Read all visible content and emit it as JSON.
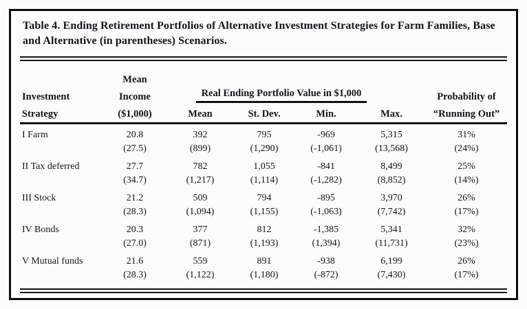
{
  "page": {
    "title": "Table 4. Ending Retirement Portfolios of Alternative Investment Strategies for Farm Families, Base and Alternative (in parentheses) Scenarios."
  },
  "table": {
    "headers": {
      "col_strategy": [
        "Investment",
        "Strategy"
      ],
      "col_income": [
        "Mean",
        "Income",
        "($1,000)"
      ],
      "group": "Real Ending Portfolio Value in $1,000",
      "sub": [
        "Mean",
        "St. Dev.",
        "Min.",
        "Max."
      ],
      "col_probability": [
        "Probability of",
        "“Running Out”"
      ]
    },
    "rows": [
      {
        "strategy": "I Farm",
        "base": [
          "20.8",
          "392",
          "795",
          "-969",
          "5,315",
          "31%"
        ],
        "alt": [
          "(27.5)",
          "(899)",
          "(1,290)",
          "(-1,061)",
          "(13,568)",
          "(24%)"
        ]
      },
      {
        "strategy": "II Tax deferred",
        "base": [
          "27.7",
          "782",
          "1,055",
          "-841",
          "8,499",
          "25%"
        ],
        "alt": [
          "(34.7)",
          "(1,217)",
          "(1,114)",
          "(-1,282)",
          "(8,852)",
          "(14%)"
        ]
      },
      {
        "strategy": "III Stock",
        "base": [
          "21.2",
          "509",
          "794",
          "-895",
          "3,970",
          "26%"
        ],
        "alt": [
          "(28.3)",
          "(1,094)",
          "(1,155)",
          "(-1,063)",
          "(7,742)",
          "(17%)"
        ]
      },
      {
        "strategy": "IV Bonds",
        "base": [
          "20.3",
          "377",
          "812",
          "-1,385",
          "5,341",
          "32%"
        ],
        "alt": [
          "(27.0)",
          "(871)",
          "(1,193)",
          "(1,394)",
          "(11,731)",
          "(23%)"
        ]
      },
      {
        "strategy": "V Mutual funds",
        "base": [
          "21.6",
          "559",
          "891",
          "-938",
          "6,199",
          "26%"
        ],
        "alt": [
          "(28.3)",
          "(1,122)",
          "(1,180)",
          "(-872)",
          "(7,430)",
          "(17%)"
        ]
      }
    ]
  },
  "colors": {
    "text": "#14141a",
    "border": "#0b0b0b",
    "background": "#fcfcfc"
  },
  "chart_data": {
    "type": "table",
    "title": "Table 4. Ending Retirement Portfolios of Alternative Investment Strategies for Farm Families, Base and Alternative (in parentheses) Scenarios.",
    "column_group": {
      "label": "Real Ending Portfolio Value in $1,000",
      "spans": [
        "Mean",
        "St. Dev.",
        "Min.",
        "Max."
      ]
    },
    "columns": [
      "Investment Strategy",
      "Mean Income ($1,000)",
      "Mean",
      "St. Dev.",
      "Min.",
      "Max.",
      "Probability of “Running Out”"
    ],
    "rows": [
      [
        "I Farm",
        "20.8 (27.5)",
        "392 (899)",
        "795 (1,290)",
        "-969 (-1,061)",
        "5,315 (13,568)",
        "31% (24%)"
      ],
      [
        "II Tax deferred",
        "27.7 (34.7)",
        "782 (1,217)",
        "1,055 (1,114)",
        "-841 (-1,282)",
        "8,499 (8,852)",
        "25% (14%)"
      ],
      [
        "III Stock",
        "21.2 (28.3)",
        "509 (1,094)",
        "794 (1,155)",
        "-895 (-1,063)",
        "3,970 (7,742)",
        "26% (17%)"
      ],
      [
        "IV Bonds",
        "20.3 (27.0)",
        "377 (871)",
        "812 (1,193)",
        "-1,385 (1,394)",
        "5,341 (11,731)",
        "32% (23%)"
      ],
      [
        "V Mutual funds",
        "21.6 (28.3)",
        "559 (1,122)",
        "891 (1,180)",
        "-938 (-872)",
        "6,199 (7,430)",
        "26% (17%)"
      ]
    ]
  }
}
